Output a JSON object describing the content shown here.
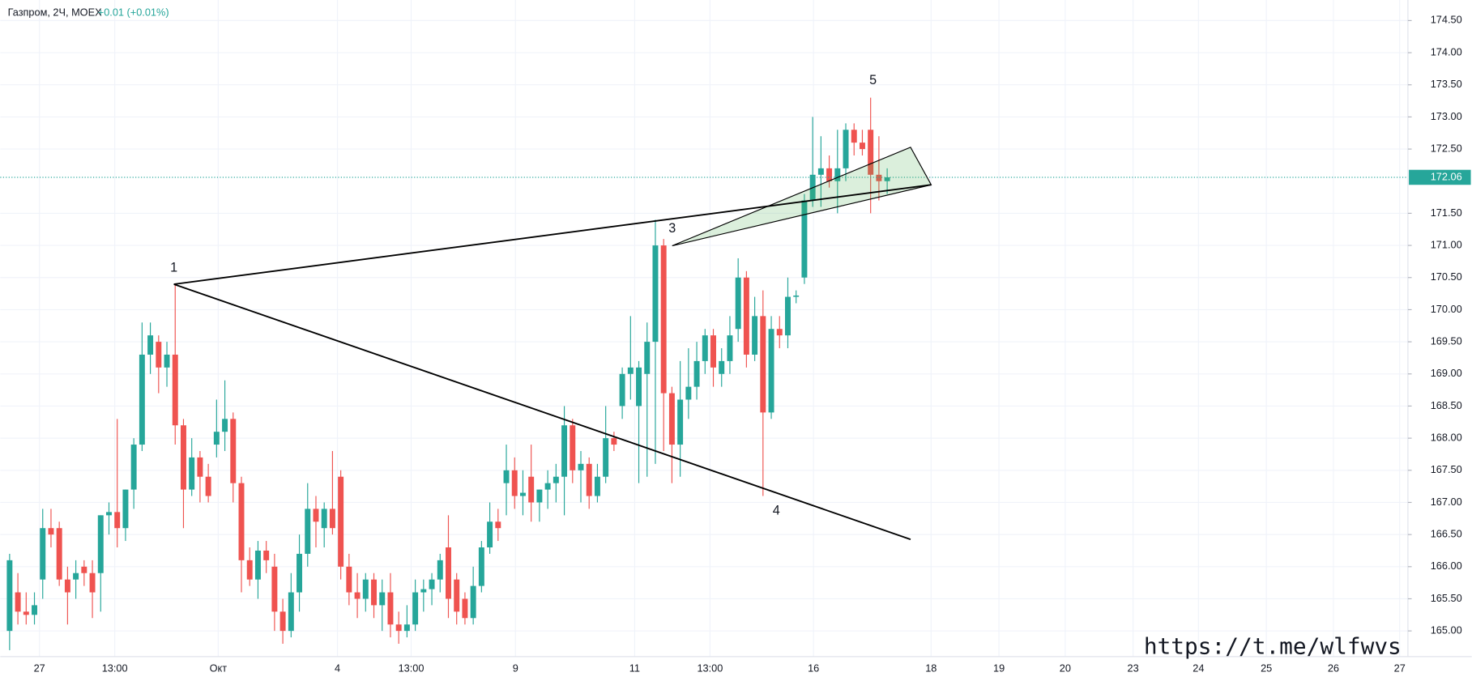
{
  "header": {
    "symbol": "Газпром, 2Ч, MOEX",
    "change": "+0.01 (+0.01%)"
  },
  "chart_data": {
    "type": "candlestick",
    "up_color": "#26a69a",
    "down_color": "#ef5350",
    "grid": true,
    "ylim": [
      164.6,
      174.82
    ],
    "yticks": [
      {
        "value": 165,
        "label": "165.00"
      },
      {
        "value": 165.5,
        "label": "165.50"
      },
      {
        "value": 166,
        "label": "166.00"
      },
      {
        "value": 166.5,
        "label": "166.50"
      },
      {
        "value": 167,
        "label": "167.00"
      },
      {
        "value": 167.5,
        "label": "167.50"
      },
      {
        "value": 168,
        "label": "168.00"
      },
      {
        "value": 168.5,
        "label": "168.50"
      },
      {
        "value": 169,
        "label": "169.00"
      },
      {
        "value": 169.5,
        "label": "169.50"
      },
      {
        "value": 170,
        "label": "170.00"
      },
      {
        "value": 170.5,
        "label": "170.50"
      },
      {
        "value": 171,
        "label": "171.00"
      },
      {
        "value": 171.5,
        "label": "171.50"
      },
      {
        "value": 172.5,
        "label": "172.50"
      },
      {
        "value": 173,
        "label": "173.00"
      },
      {
        "value": 173.5,
        "label": "173.50"
      },
      {
        "value": 174,
        "label": "174.00"
      },
      {
        "value": 174.5,
        "label": "174.50"
      }
    ],
    "xlim": [
      -1.13,
      168.9
    ],
    "xticks": [
      {
        "value": 3.6,
        "label": "27"
      },
      {
        "value": 12.7,
        "label": "13:00"
      },
      {
        "value": 25.2,
        "label": "Окт"
      },
      {
        "value": 39.6,
        "label": "4"
      },
      {
        "value": 48.5,
        "label": "13:00"
      },
      {
        "value": 61.1,
        "label": "9"
      },
      {
        "value": 75.5,
        "label": "11"
      },
      {
        "value": 84.6,
        "label": "13:00"
      },
      {
        "value": 97.1,
        "label": "16"
      },
      {
        "value": 111.3,
        "label": "18"
      },
      {
        "value": 119.5,
        "label": "19"
      },
      {
        "value": 127.5,
        "label": "20"
      },
      {
        "value": 135.7,
        "label": "23"
      },
      {
        "value": 143.6,
        "label": "24"
      },
      {
        "value": 151.8,
        "label": "25"
      },
      {
        "value": 159.9,
        "label": "26"
      },
      {
        "value": 167.9,
        "label": "27"
      }
    ],
    "last_price": 172.06,
    "last_color": "#26a69a",
    "open": [
      165.0,
      165.6,
      165.3,
      165.25,
      165.8,
      166.6,
      166.6,
      165.8,
      165.8,
      166.0,
      165.9,
      165.9,
      166.8,
      166.85,
      166.6,
      167.2,
      167.9,
      169.3,
      169.5,
      169.1,
      169.3,
      168.2,
      167.2,
      167.7,
      167.4,
      167.9,
      168.1,
      168.3,
      167.3,
      166.1,
      165.8,
      166.25,
      166.0,
      165.3,
      165.0,
      165.6,
      166.2,
      166.9,
      166.6,
      166.9,
      167.4,
      166.0,
      165.6,
      165.5,
      165.8,
      165.4,
      165.6,
      165.1,
      165.0,
      165.1,
      165.6,
      165.65,
      165.8,
      166.3,
      165.8,
      165.5,
      165.2,
      165.7,
      166.3,
      166.7,
      167.3,
      167.5,
      167.1,
      167.4,
      167.0,
      167.2,
      167.3,
      167.4,
      168.2,
      167.5,
      167.6,
      167.1,
      167.4,
      168.0,
      168.5,
      169.0,
      168.5,
      169.0,
      169.5,
      171.0,
      168.7,
      167.9,
      168.6,
      168.8,
      169.2,
      169.6,
      169.0,
      169.2,
      169.7,
      170.5,
      169.3,
      169.9,
      168.4,
      169.7,
      169.6,
      170.2,
      170.5,
      171.7,
      172.1,
      172.2,
      172.0,
      172.2,
      172.8,
      172.6,
      172.8,
      172.1,
      172.0
    ],
    "high": [
      166.2,
      165.9,
      165.6,
      165.6,
      166.9,
      166.9,
      166.7,
      166.0,
      166.1,
      166.1,
      166.1,
      166.8,
      167.0,
      168.3,
      167.2,
      168.0,
      169.8,
      169.8,
      169.6,
      169.5,
      170.4,
      168.3,
      168.0,
      167.8,
      167.6,
      168.6,
      168.9,
      168.4,
      167.4,
      166.3,
      166.4,
      166.4,
      166.2,
      165.5,
      165.9,
      166.5,
      167.3,
      167.1,
      167.0,
      167.8,
      167.5,
      166.2,
      165.9,
      165.9,
      165.9,
      165.8,
      165.9,
      165.3,
      165.4,
      165.8,
      165.8,
      165.9,
      166.2,
      166.8,
      165.9,
      165.6,
      166.0,
      166.4,
      167.0,
      166.9,
      167.9,
      167.7,
      167.5,
      167.9,
      167.2,
      167.5,
      167.6,
      168.5,
      168.3,
      167.8,
      167.7,
      167.6,
      168.5,
      168.1,
      169.1,
      169.9,
      169.2,
      169.8,
      171.4,
      171.1,
      168.8,
      169.2,
      169.4,
      169.5,
      169.7,
      169.7,
      169.4,
      169.9,
      170.8,
      170.6,
      170.2,
      170.3,
      169.9,
      169.9,
      170.5,
      170.3,
      171.8,
      173.0,
      172.7,
      172.4,
      172.8,
      172.9,
      172.9,
      172.8,
      173.3,
      172.7,
      172.2
    ],
    "low": [
      164.7,
      165.1,
      165.1,
      165.1,
      165.5,
      166.3,
      165.7,
      165.1,
      165.5,
      165.7,
      165.2,
      165.3,
      166.5,
      166.3,
      166.4,
      166.9,
      167.8,
      169.0,
      168.7,
      168.8,
      167.9,
      166.6,
      167.1,
      167.0,
      167.0,
      167.7,
      167.8,
      167.0,
      165.6,
      165.7,
      165.5,
      165.9,
      165.0,
      164.8,
      164.9,
      165.3,
      166.0,
      166.3,
      166.3,
      166.5,
      165.8,
      165.4,
      165.2,
      165.3,
      165.2,
      165.0,
      164.9,
      164.8,
      164.9,
      165.0,
      165.3,
      165.4,
      165.6,
      165.2,
      165.1,
      165.1,
      165.1,
      165.6,
      166.2,
      166.4,
      166.8,
      166.9,
      166.8,
      166.7,
      166.7,
      166.9,
      167.0,
      166.8,
      167.3,
      167.0,
      166.9,
      167.0,
      167.3,
      167.8,
      168.3,
      168.6,
      167.3,
      167.4,
      167.6,
      167.8,
      167.3,
      167.4,
      168.3,
      168.6,
      169.0,
      168.8,
      168.8,
      169.0,
      169.5,
      169.1,
      169.2,
      167.1,
      168.3,
      169.4,
      169.4,
      170.1,
      170.4,
      171.6,
      171.6,
      171.9,
      171.5,
      172.0,
      172.4,
      172.4,
      171.5,
      171.7,
      171.8
    ],
    "close": [
      166.1,
      165.3,
      165.25,
      165.4,
      166.6,
      166.5,
      165.8,
      165.6,
      165.9,
      165.9,
      165.6,
      166.8,
      166.85,
      166.6,
      167.2,
      167.9,
      169.3,
      169.6,
      169.1,
      169.3,
      168.2,
      167.2,
      167.7,
      167.4,
      167.1,
      168.1,
      168.3,
      167.3,
      166.1,
      165.8,
      166.25,
      166.1,
      165.3,
      165.0,
      165.6,
      166.2,
      166.9,
      166.7,
      166.9,
      166.6,
      166.0,
      165.6,
      165.5,
      165.8,
      165.4,
      165.6,
      165.1,
      165.0,
      165.1,
      165.6,
      165.65,
      165.8,
      166.1,
      165.5,
      165.3,
      165.2,
      165.7,
      166.3,
      166.7,
      166.6,
      167.5,
      167.1,
      167.15,
      167.0,
      167.2,
      167.3,
      167.4,
      168.2,
      167.5,
      167.6,
      167.1,
      167.4,
      168.0,
      167.9,
      169.0,
      169.1,
      169.1,
      169.5,
      171.0,
      168.7,
      167.9,
      168.6,
      168.8,
      169.2,
      169.6,
      169.1,
      169.2,
      169.6,
      170.5,
      169.3,
      169.9,
      168.4,
      169.7,
      169.6,
      170.2,
      170.22,
      171.7,
      172.1,
      172.2,
      172.0,
      172.2,
      172.8,
      172.6,
      172.5,
      172.1,
      172.0,
      172.06
    ],
    "annotations": [
      "1",
      "3",
      "4",
      "5"
    ],
    "watermark": "https://t.me/wlfwvs"
  }
}
